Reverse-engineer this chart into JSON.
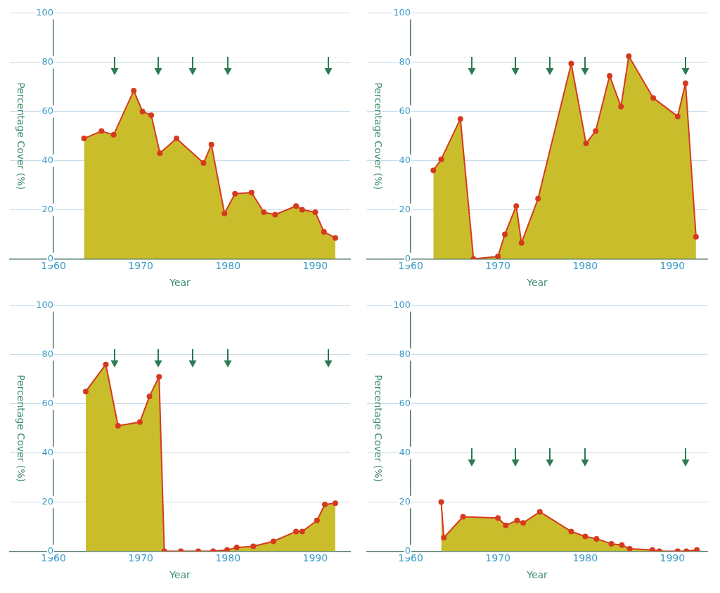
{
  "chart_data": [
    {
      "type": "area",
      "xlabel": "Year",
      "ylabel": "Percentage Cover (%)",
      "xlim": [
        1955,
        1994
      ],
      "ylim": [
        0,
        100
      ],
      "xticks": [
        1960,
        1970,
        1980,
        1990
      ],
      "yticks": [
        0,
        20,
        40,
        60,
        80,
        100
      ],
      "grid": "y",
      "marker": "circle",
      "legend": false,
      "series": [
        {
          "color": "#d63a1e",
          "x": [
            1963.5,
            1965.5,
            1966.9,
            1969.2,
            1970.2,
            1971.2,
            1972.2,
            1974.1,
            1977.2,
            1978.1,
            1979.6,
            1980.8,
            1982.7,
            1984.1,
            1985.4,
            1987.8,
            1988.5,
            1990.0,
            1991.0,
            1992.3
          ],
          "values": [
            49,
            52,
            50.5,
            68.5,
            60,
            58.5,
            43,
            49,
            39,
            46.5,
            18.5,
            26.5,
            27,
            19,
            18,
            21.5,
            20,
            19,
            11,
            8.5
          ]
        }
      ]
    },
    {
      "type": "area",
      "xlabel": "Year",
      "ylabel": "Percentage Cover (%)",
      "xlim": [
        1955,
        1994
      ],
      "ylim": [
        0,
        100
      ],
      "xticks": [
        1960,
        1970,
        1980,
        1990
      ],
      "yticks": [
        0,
        20,
        40,
        60,
        80,
        100
      ],
      "grid": "y",
      "marker": "circle",
      "legend": false,
      "series": [
        {
          "color": "#d63a1e",
          "x": [
            1962.6,
            1963.5,
            1965.7,
            1967.2,
            1970.0,
            1970.8,
            1972.1,
            1972.7,
            1974.6,
            1978.4,
            1980.1,
            1981.2,
            1982.8,
            1984.1,
            1985.0,
            1987.8,
            1990.6,
            1991.5,
            1992.7
          ],
          "values": [
            36,
            40.5,
            57,
            0,
            1,
            10,
            21.5,
            6.5,
            24.5,
            79.5,
            47,
            52,
            74.5,
            62,
            82.5,
            65.5,
            58,
            71.5,
            9
          ]
        }
      ]
    },
    {
      "type": "area",
      "xlabel": "Year",
      "ylabel": "Percentage Cover (%)",
      "xlim": [
        1955,
        1994
      ],
      "ylim": [
        0,
        100
      ],
      "xticks": [
        1960,
        1970,
        1980,
        1990
      ],
      "yticks": [
        0,
        20,
        40,
        60,
        80,
        100
      ],
      "grid": "y",
      "marker": "circle",
      "legend": false,
      "series": [
        {
          "color": "#d63a1e",
          "x": [
            1963.7,
            1966.0,
            1967.4,
            1969.9,
            1971.0,
            1972.1,
            1972.7,
            1974.6,
            1976.6,
            1978.3,
            1979.9,
            1981.0,
            1982.9,
            1985.2,
            1987.8,
            1988.5,
            1990.2,
            1991.1,
            1992.3
          ],
          "values": [
            65,
            76,
            51,
            52.5,
            63,
            71,
            0,
            0,
            0,
            0,
            0.5,
            1.5,
            2,
            4,
            8,
            8,
            12.5,
            19,
            19.5
          ]
        }
      ]
    },
    {
      "type": "area",
      "xlabel": "Year",
      "ylabel": "Percentage Cover (%)",
      "xlim": [
        1955,
        1994
      ],
      "ylim": [
        0,
        100
      ],
      "xticks": [
        1960,
        1970,
        1980,
        1990
      ],
      "yticks": [
        0,
        20,
        40,
        60,
        80,
        100
      ],
      "grid": "y",
      "marker": "circle",
      "legend": false,
      "series": [
        {
          "color": "#d63a1e",
          "x": [
            1963.5,
            1963.8,
            1966.0,
            1970.0,
            1970.9,
            1972.2,
            1972.9,
            1974.8,
            1978.4,
            1980.0,
            1981.3,
            1983.0,
            1984.2,
            1985.1,
            1987.7,
            1988.5,
            1990.6,
            1991.6,
            1992.8
          ],
          "values": [
            20,
            5.5,
            14,
            13.5,
            10.5,
            12.5,
            11.5,
            16,
            8,
            6,
            5,
            3,
            2.5,
            1,
            0.5,
            0,
            0,
            0,
            0.5
          ]
        }
      ]
    }
  ]
}
